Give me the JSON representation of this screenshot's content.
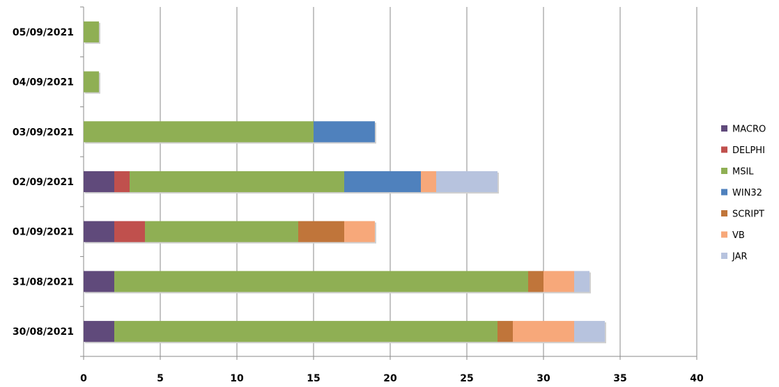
{
  "chart_data": {
    "type": "bar",
    "orientation": "horizontal",
    "stacked": true,
    "title": "",
    "xlabel": "",
    "ylabel": "",
    "xlim": [
      0,
      40
    ],
    "x_ticks": [
      0,
      5,
      10,
      15,
      20,
      25,
      30,
      35,
      40
    ],
    "grid": true,
    "legend_position": "right",
    "categories": [
      "05/09/2021",
      "04/09/2021",
      "03/09/2021",
      "02/09/2021",
      "01/09/2021",
      "31/08/2021",
      "30/08/2021"
    ],
    "series": [
      {
        "name": "MACRO",
        "color": "#604A7B",
        "values": [
          0,
          0,
          0,
          2,
          2,
          2,
          2
        ]
      },
      {
        "name": "DELPHI",
        "color": "#C0504D",
        "values": [
          0,
          0,
          0,
          1,
          2,
          0,
          0
        ]
      },
      {
        "name": "MSIL",
        "color": "#8FAF54",
        "values": [
          1,
          1,
          15,
          14,
          10,
          27,
          25
        ]
      },
      {
        "name": "WIN32",
        "color": "#4F81BD",
        "values": [
          0,
          0,
          4,
          5,
          0,
          0,
          0
        ]
      },
      {
        "name": "SCRIPT",
        "color": "#C0753A",
        "values": [
          0,
          0,
          0,
          0,
          3,
          1,
          1
        ]
      },
      {
        "name": "VB",
        "color": "#F7A87A",
        "values": [
          0,
          0,
          0,
          1,
          2,
          2,
          4
        ]
      },
      {
        "name": "JAR",
        "color": "#B7C3DE",
        "values": [
          0,
          0,
          0,
          4,
          0,
          1,
          2
        ]
      }
    ]
  }
}
